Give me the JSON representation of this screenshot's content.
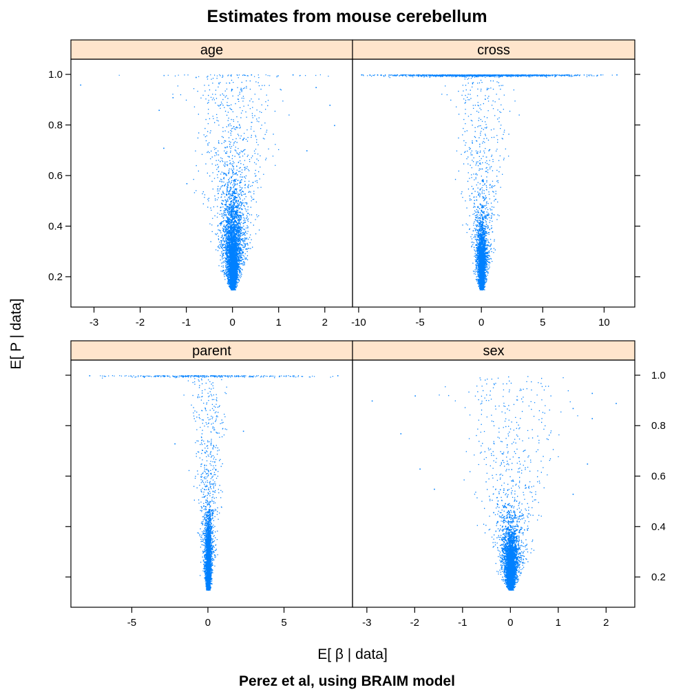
{
  "chart_data": {
    "type": "scatter",
    "title": "Estimates from mouse cerebellum",
    "subtitle": "Perez et al, using BRAIM model",
    "xlabel": "E[ β | data]",
    "ylabel": "E[ P | data]",
    "ylim": [
      0.08,
      1.06
    ],
    "y_ticks": [
      0.2,
      0.4,
      0.6,
      0.8,
      1.0
    ],
    "y_tick_labels": [
      "0.2",
      "0.4",
      "0.6",
      "0.8",
      "1.0"
    ],
    "marker_color": "#0080ff",
    "strip_color": "#ffe5cc",
    "layout": "2x2 lattice, shared y axis, free x axis",
    "panels": [
      {
        "name": "age",
        "xlim": [
          -3.5,
          2.6
        ],
        "x_ticks": [
          -3,
          -2,
          -1,
          0,
          1,
          2
        ],
        "x_tick_labels": [
          "-3",
          "-2",
          "-1",
          "0",
          "1",
          "2"
        ],
        "cloud": {
          "center_x": 0.0,
          "min_y": 0.15,
          "apex_y": 0.3,
          "spread_at_top": 1.3,
          "cap_points_at_1": "sparse"
        },
        "points": [
          {
            "x": -3.3,
            "y": 0.96
          },
          {
            "x": -1.6,
            "y": 0.86
          },
          {
            "x": -1.3,
            "y": 0.91
          },
          {
            "x": -0.8,
            "y": 0.99
          },
          {
            "x": 0.4,
            "y": 1.0
          },
          {
            "x": 1.3,
            "y": 1.0
          },
          {
            "x": 1.8,
            "y": 0.95
          },
          {
            "x": 2.2,
            "y": 0.8
          },
          {
            "x": 2.1,
            "y": 0.88
          },
          {
            "x": -1.5,
            "y": 0.71
          },
          {
            "x": 1.6,
            "y": 0.7
          },
          {
            "x": -1.0,
            "y": 0.57
          }
        ]
      },
      {
        "name": "cross",
        "xlim": [
          -10.5,
          12.5
        ],
        "x_ticks": [
          -10,
          -5,
          0,
          5,
          10
        ],
        "x_tick_labels": [
          "-10",
          "-5",
          "0",
          "5",
          "10"
        ],
        "cloud": {
          "center_x": 0.0,
          "min_y": 0.15,
          "apex_y": 0.25,
          "spread_at_top": 3.2,
          "cap_points_at_1": "dense",
          "cap_range": [
            -10.0,
            11.0
          ]
        },
        "points": [
          {
            "x": -9.8,
            "y": 1.0
          },
          {
            "x": 11.0,
            "y": 1.0
          },
          {
            "x": 9.7,
            "y": 1.0
          },
          {
            "x": -8.5,
            "y": 1.0
          }
        ]
      },
      {
        "name": "parent",
        "xlim": [
          -9.0,
          9.5
        ],
        "x_ticks": [
          -5,
          0,
          5
        ],
        "x_tick_labels": [
          "-5",
          "0",
          "5"
        ],
        "cloud": {
          "center_x": 0.0,
          "min_y": 0.15,
          "apex_y": 0.25,
          "spread_at_top": 1.6,
          "cap_points_at_1": "medium",
          "cap_range": [
            -7.8,
            8.6
          ]
        },
        "points": [
          {
            "x": -2.2,
            "y": 0.73
          },
          {
            "x": 2.3,
            "y": 0.78
          },
          {
            "x": 8.5,
            "y": 1.0
          },
          {
            "x": -7.8,
            "y": 1.0
          }
        ]
      },
      {
        "name": "sex",
        "xlim": [
          -3.3,
          2.6
        ],
        "x_ticks": [
          -3,
          -2,
          -1,
          0,
          1,
          2
        ],
        "x_tick_labels": [
          "-3",
          "-2",
          "-1",
          "0",
          "1",
          "2"
        ],
        "cloud": {
          "center_x": 0.0,
          "min_y": 0.15,
          "apex_y": 0.25,
          "spread_at_top": 1.5,
          "cap_points_at_1": "none"
        },
        "points": [
          {
            "x": -2.9,
            "y": 0.9
          },
          {
            "x": -2.0,
            "y": 0.92
          },
          {
            "x": -2.3,
            "y": 0.77
          },
          {
            "x": 2.2,
            "y": 0.89
          },
          {
            "x": 1.7,
            "y": 0.93
          },
          {
            "x": 1.3,
            "y": 0.87
          },
          {
            "x": 1.7,
            "y": 0.83
          },
          {
            "x": -1.9,
            "y": 0.63
          },
          {
            "x": 1.3,
            "y": 0.53
          },
          {
            "x": 1.6,
            "y": 0.65
          },
          {
            "x": -1.6,
            "y": 0.55
          }
        ]
      }
    ]
  }
}
